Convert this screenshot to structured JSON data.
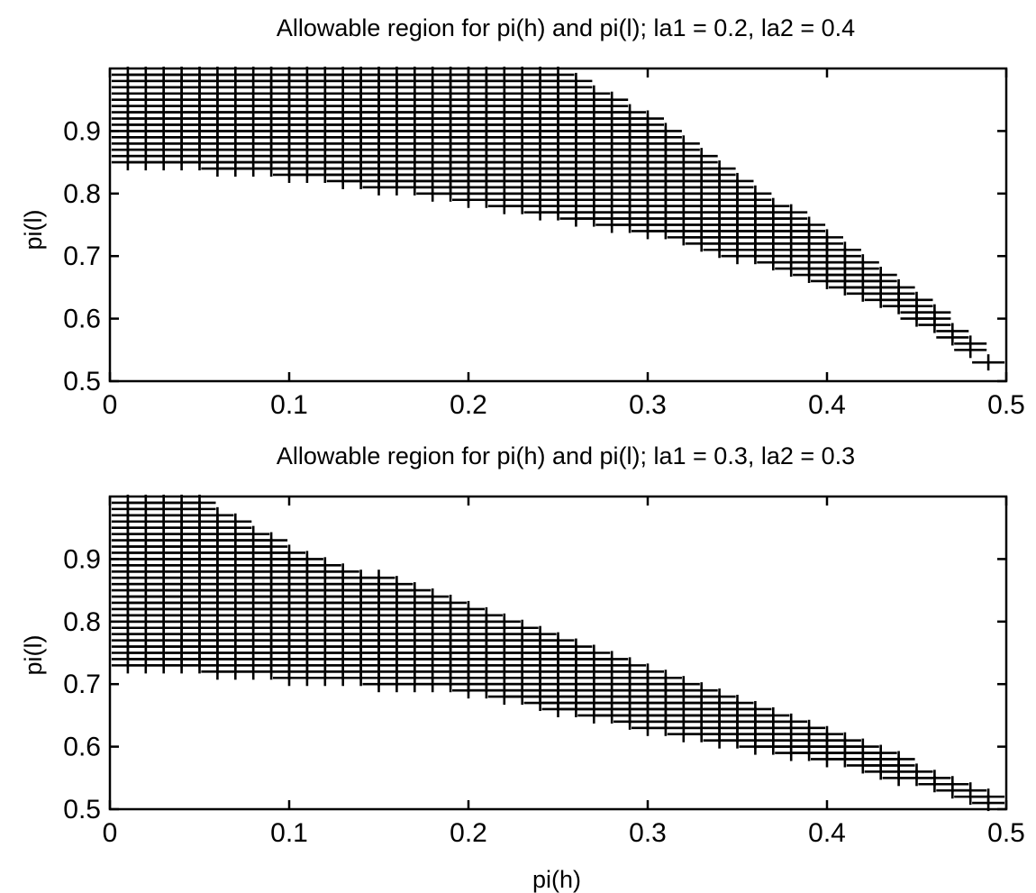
{
  "chart_data": [
    {
      "type": "scatter",
      "title": "Allowable region for pi(h) and pi(l); la1 = 0.2, la2 = 0.4",
      "xlabel": "",
      "ylabel": "pi(l)",
      "xlim": [
        0,
        0.5
      ],
      "ylim": [
        0.5,
        1.0
      ],
      "xticks": [
        0,
        0.1,
        0.2,
        0.3,
        0.4,
        0.5
      ],
      "xtick_labels": [
        "0",
        "0.1",
        "0.2",
        "0.3",
        "0.4",
        "0.5"
      ],
      "yticks": [
        0.5,
        0.6,
        0.7,
        0.8,
        0.9
      ],
      "ytick_labels": [
        "0.5",
        "0.6",
        "0.7",
        "0.8",
        "0.9"
      ],
      "marker": "+",
      "grid": false,
      "region": {
        "x_step": 0.01,
        "y_step": 0.01,
        "x_range": [
          0.01,
          0.49
        ],
        "y_max": [
          [
            0.01,
            0.99
          ],
          [
            0.25,
            0.99
          ],
          [
            0.3,
            0.92
          ],
          [
            0.35,
            0.82
          ],
          [
            0.4,
            0.73
          ],
          [
            0.45,
            0.63
          ],
          [
            0.49,
            0.53
          ]
        ],
        "y_min": [
          [
            0.01,
            0.85
          ],
          [
            0.1,
            0.83
          ],
          [
            0.2,
            0.79
          ],
          [
            0.3,
            0.74
          ],
          [
            0.4,
            0.66
          ],
          [
            0.45,
            0.6
          ],
          [
            0.49,
            0.53
          ]
        ]
      }
    },
    {
      "type": "scatter",
      "title": "Allowable region for pi(h) and pi(l); la1 = 0.3, la2 = 0.3",
      "xlabel": "pi(h)",
      "ylabel": "pi(l)",
      "xlim": [
        0,
        0.5
      ],
      "ylim": [
        0.5,
        1.0
      ],
      "xticks": [
        0,
        0.1,
        0.2,
        0.3,
        0.4,
        0.5
      ],
      "xtick_labels": [
        "0",
        "0.1",
        "0.2",
        "0.3",
        "0.4",
        "0.5"
      ],
      "yticks": [
        0.5,
        0.6,
        0.7,
        0.8,
        0.9
      ],
      "ytick_labels": [
        "0.5",
        "0.6",
        "0.7",
        "0.8",
        "0.9"
      ],
      "marker": "+",
      "grid": false,
      "region": {
        "x_step": 0.01,
        "y_step": 0.01,
        "x_range": [
          0.01,
          0.49
        ],
        "y_max": [
          [
            0.01,
            0.99
          ],
          [
            0.05,
            0.99
          ],
          [
            0.1,
            0.91
          ],
          [
            0.2,
            0.82
          ],
          [
            0.3,
            0.72
          ],
          [
            0.4,
            0.62
          ],
          [
            0.49,
            0.52
          ]
        ],
        "y_min": [
          [
            0.01,
            0.73
          ],
          [
            0.1,
            0.71
          ],
          [
            0.2,
            0.69
          ],
          [
            0.3,
            0.63
          ],
          [
            0.4,
            0.58
          ],
          [
            0.49,
            0.51
          ]
        ]
      }
    }
  ]
}
